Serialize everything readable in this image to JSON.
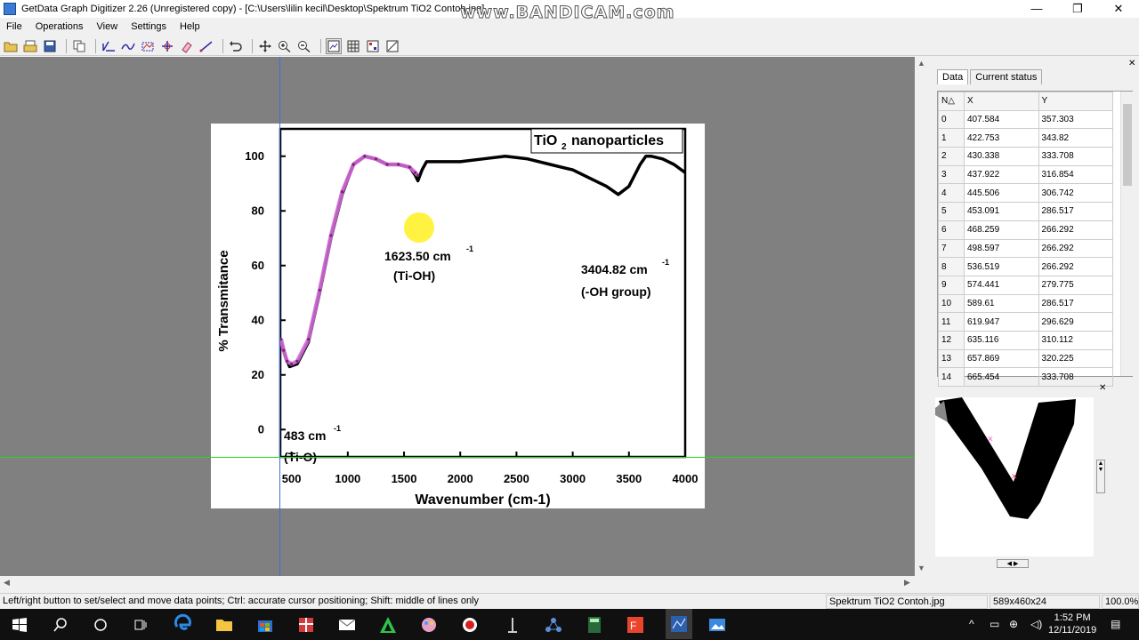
{
  "window": {
    "title": "GetData Graph Digitizer 2.26 (Unregistered copy) - [C:\\Users\\lilin kecil\\Desktop\\Spektrum TiO2 Contoh.jpg]",
    "watermark": "www.BANDICAM.com",
    "minimize": "—",
    "maximize": "❐",
    "close": "✕"
  },
  "menu": [
    "File",
    "Operations",
    "View",
    "Settings",
    "Help"
  ],
  "figure": {
    "legend_box": "nanoparticles",
    "legend_chem": "TiO",
    "legend_sub": "2",
    "peak1_value": "1623.50 cm",
    "peak1_label": "(Ti-OH)",
    "peak2_value": "3404.82 cm",
    "peak2_label": "(-OH group)",
    "peak3_value": "483 cm",
    "peak3_label": "(Ti-O)",
    "superscript": "-1"
  },
  "chart_data": {
    "type": "line",
    "title": "",
    "xlabel": "Wavenumber (cm-1)",
    "ylabel": "% Transmitance",
    "xlim": [
      400,
      4000
    ],
    "ylim": [
      -10,
      110
    ],
    "x_ticks": [
      500,
      1000,
      1500,
      2000,
      2500,
      3000,
      3500,
      4000
    ],
    "y_ticks": [
      0,
      20,
      40,
      60,
      80,
      100
    ],
    "series": [
      {
        "x": [
          407,
          450,
          483,
          550,
          650,
          750,
          850,
          950,
          1050,
          1150,
          1250,
          1350,
          1450,
          1550,
          1600,
          1623.5,
          1660,
          1700,
          1800,
          2000,
          2200,
          2400,
          2600,
          2800,
          3000,
          3200,
          3300,
          3404.82,
          3500,
          3600,
          3650,
          3700,
          3800,
          3900,
          4000
        ],
        "y": [
          32,
          26,
          23,
          24,
          32,
          50,
          70,
          86,
          97,
          100,
          99,
          97,
          97,
          96,
          93,
          91,
          95,
          98,
          98,
          98,
          99,
          100,
          99,
          97,
          95,
          91,
          89,
          86,
          89,
          97,
          100,
          100,
          99,
          97,
          94
        ]
      }
    ],
    "digitized_series": {
      "x": [
        407,
        430,
        460,
        500,
        550,
        650,
        750,
        850,
        950,
        1050,
        1150,
        1250,
        1350,
        1450,
        1550,
        1600,
        1623.5
      ],
      "y": [
        33,
        29,
        25,
        24,
        25,
        33,
        51,
        71,
        87,
        97,
        100,
        99,
        97,
        97,
        96,
        94,
        93
      ]
    }
  },
  "panel": {
    "tabs": [
      "Data",
      "Current status"
    ],
    "columns": [
      "N△",
      "X",
      "Y"
    ],
    "rows": [
      [
        "0",
        "407.584",
        "357.303"
      ],
      [
        "1",
        "422.753",
        "343.82"
      ],
      [
        "2",
        "430.338",
        "333.708"
      ],
      [
        "3",
        "437.922",
        "316.854"
      ],
      [
        "4",
        "445.506",
        "306.742"
      ],
      [
        "5",
        "453.091",
        "286.517"
      ],
      [
        "6",
        "468.259",
        "266.292"
      ],
      [
        "7",
        "498.597",
        "266.292"
      ],
      [
        "8",
        "536.519",
        "266.292"
      ],
      [
        "9",
        "574.441",
        "279.775"
      ],
      [
        "10",
        "589.61",
        "286.517"
      ],
      [
        "11",
        "619.947",
        "296.629"
      ],
      [
        "12",
        "635.116",
        "310.112"
      ],
      [
        "13",
        "657.869",
        "320.225"
      ],
      [
        "14",
        "665.454",
        "333.708"
      ]
    ]
  },
  "status": {
    "hint": "Left/right button to set/select and move data points; Ctrl: accurate cursor positioning; Shift: middle of lines only",
    "filename": "Spektrum TiO2 Contoh.jpg",
    "dimensions": "589x460x24",
    "zoom": "100.0%"
  },
  "taskbar": {
    "time": "1:52 PM",
    "date": "12/11/2019"
  }
}
